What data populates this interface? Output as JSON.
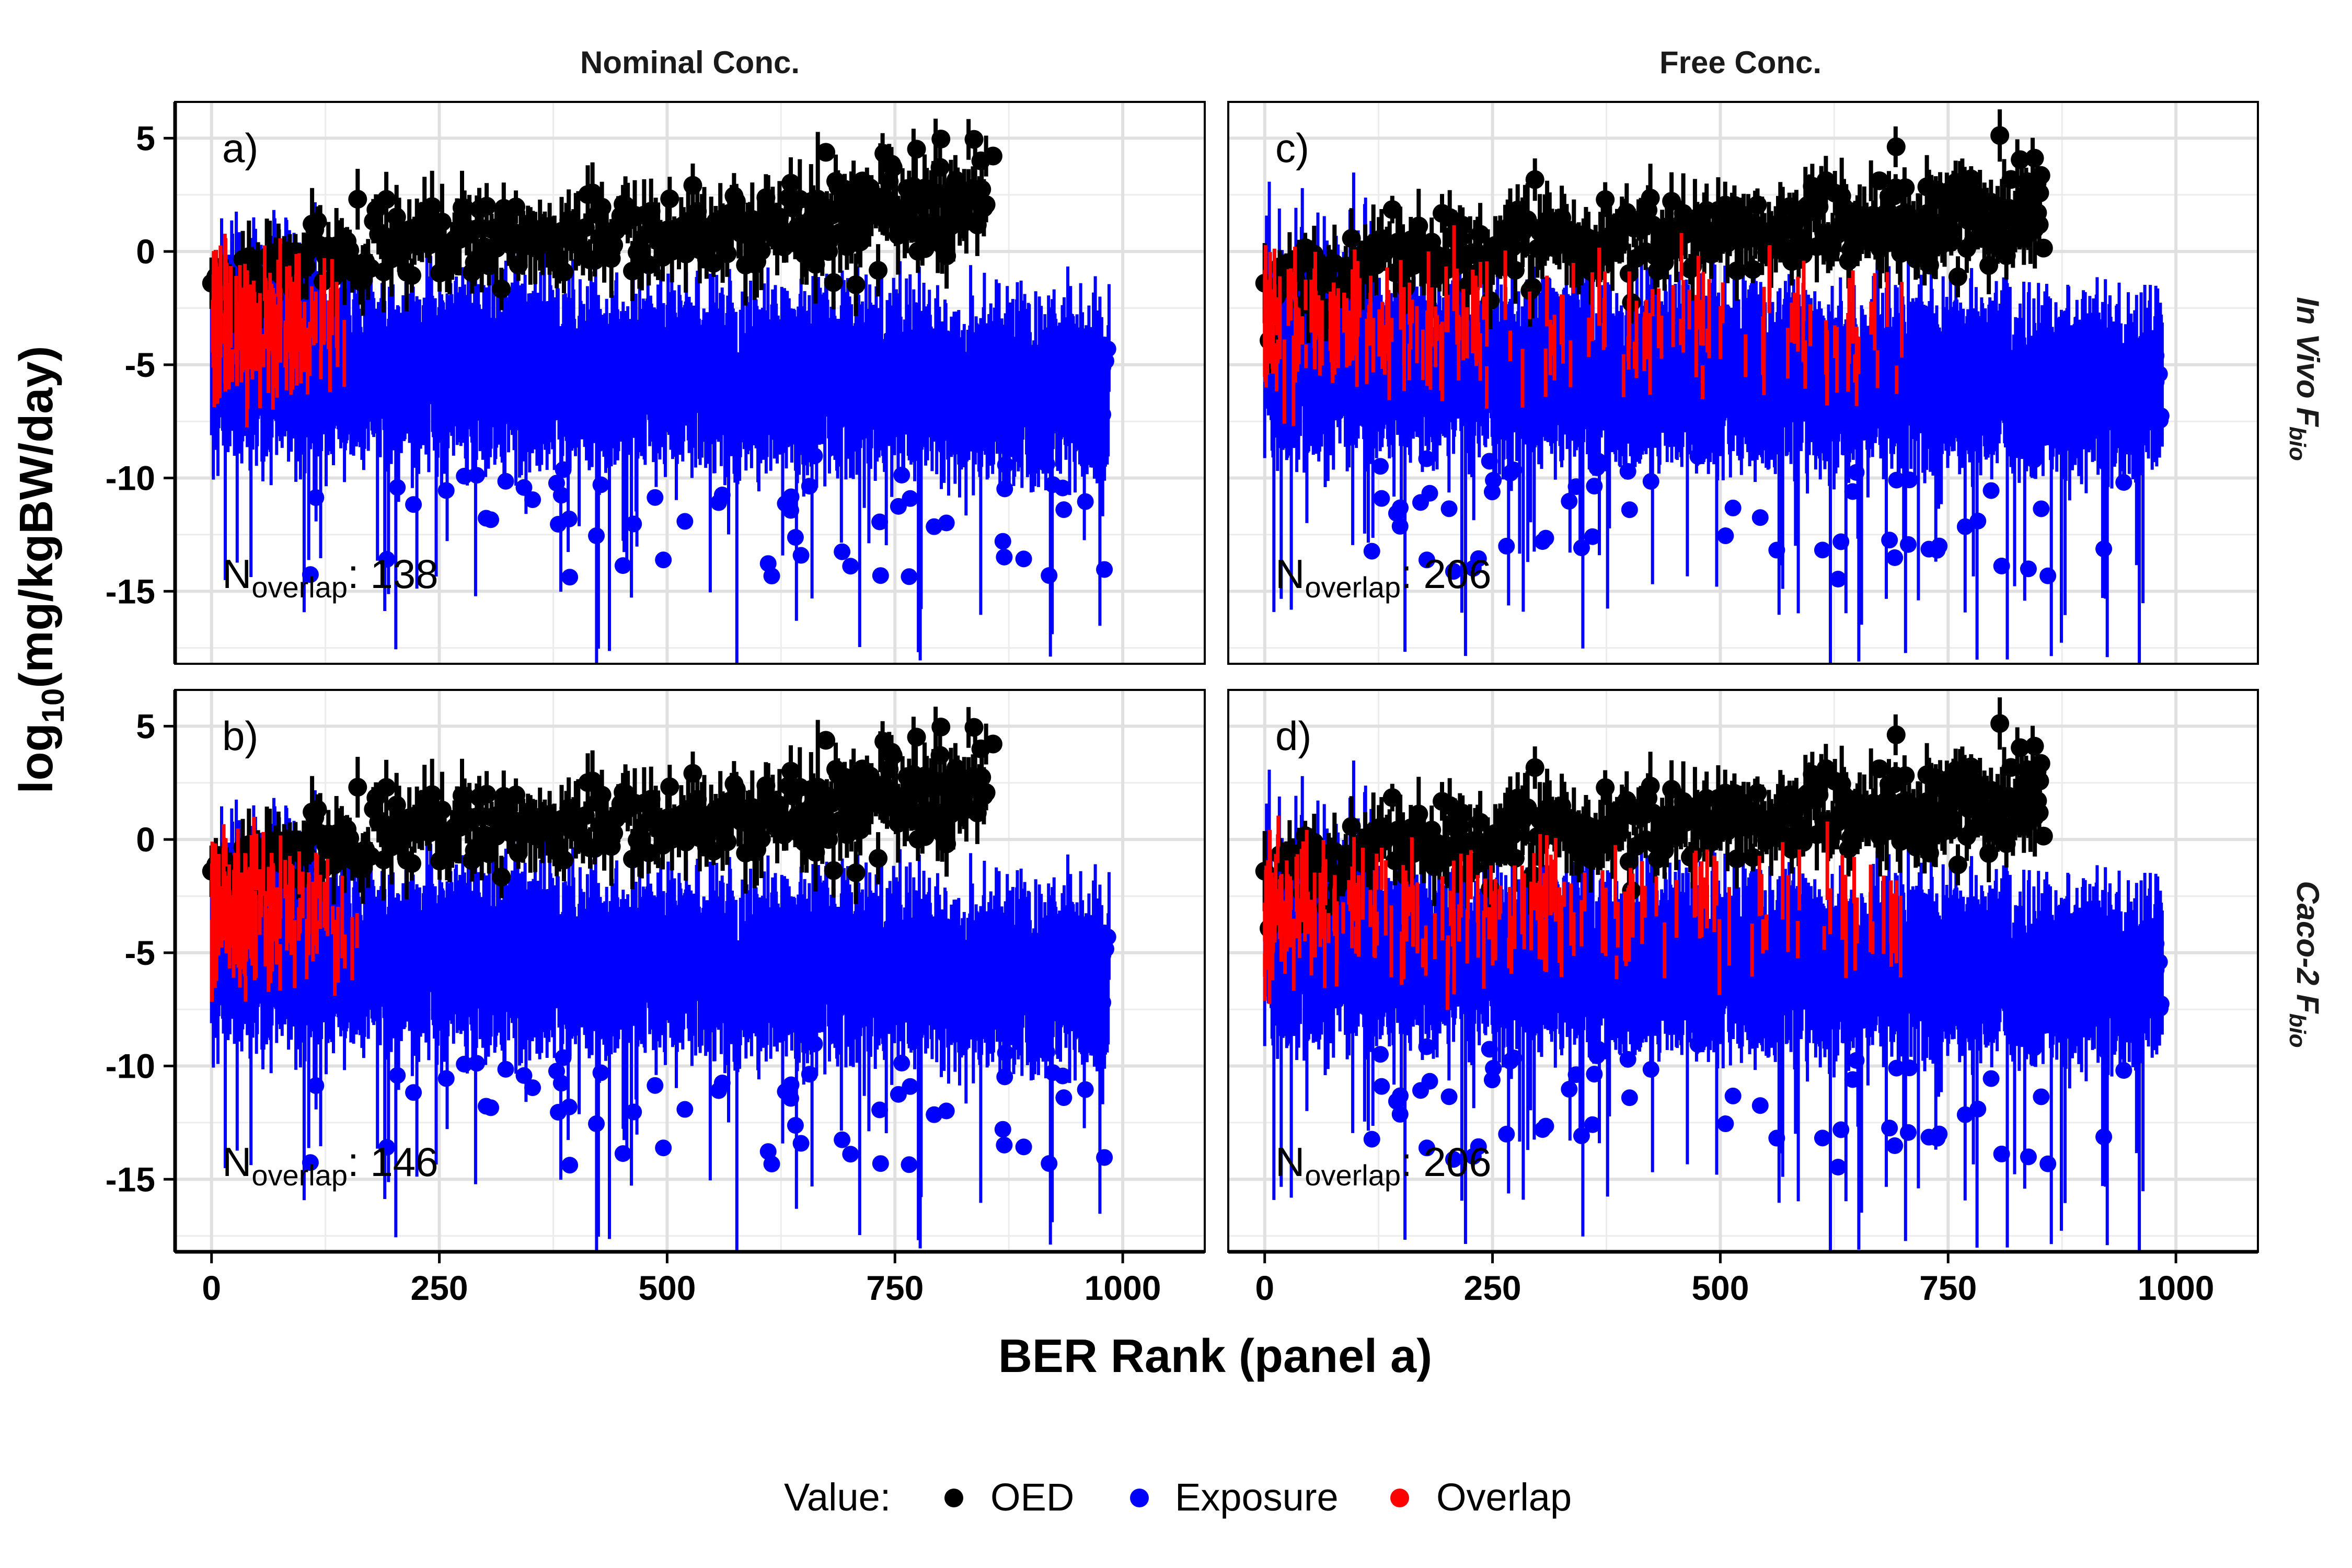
{
  "chart_data": {
    "type": "scatter",
    "title": "",
    "xlabel": "BER Rank (panel a)",
    "ylabel_base": "log",
    "ylabel_sub": "10",
    "ylabel_rest": "(mg/kgBW/day)",
    "xlim": [
      -40,
      1090
    ],
    "ylim": [
      -18.2,
      6.6
    ],
    "x_ticks": [
      "0",
      "250",
      "500",
      "750",
      "1000"
    ],
    "y_ticks": [
      "5",
      "0",
      "-5",
      "-10",
      "-15"
    ],
    "columns": [
      "Nominal Conc.",
      "Free Conc."
    ],
    "rows": [
      {
        "italic": "In Vivo",
        "F": "F",
        "sub": "bio"
      },
      {
        "italic": "Caco-2",
        "F": "F",
        "sub": "bio"
      }
    ],
    "panels": [
      {
        "id": "a",
        "label": "a)",
        "row": 0,
        "col": 0,
        "n_overlap": "138",
        "overlap_max_rank": 160
      },
      {
        "id": "b",
        "label": "b)",
        "row": 1,
        "col": 0,
        "n_overlap": "146",
        "overlap_max_rank": 165
      },
      {
        "id": "c",
        "label": "c)",
        "row": 0,
        "col": 1,
        "n_overlap": "206",
        "overlap_max_rank": 700
      },
      {
        "id": "d",
        "label": "d)",
        "row": 1,
        "col": 1,
        "n_overlap": "206",
        "overlap_max_rank": 700
      }
    ],
    "n_label": {
      "base": "N",
      "sub": "overlap",
      "sep": ":"
    },
    "series": [
      {
        "name": "OED",
        "color": "#000000",
        "x_range": [
          0,
          850
        ],
        "y_start": 0.0,
        "y_end": 1.5
      },
      {
        "name": "Exposure",
        "color": "#0000ff",
        "x_range": [
          0,
          985
        ],
        "y_start": -5.5,
        "y_end": -6.5
      },
      {
        "name": "Overlap",
        "color": "#ff0000"
      }
    ],
    "legend": {
      "title": "Value:",
      "position": "bottom"
    },
    "grid": true
  }
}
